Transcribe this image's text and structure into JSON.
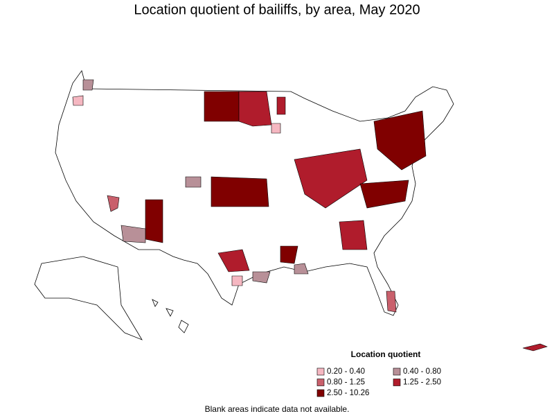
{
  "title": "Location quotient of bailiffs, by area, May 2020",
  "legend": {
    "title": "Location quotient",
    "items": [
      {
        "label": "0.20 - 0.40",
        "color": "#f5b7c1"
      },
      {
        "label": "0.40 - 0.80",
        "color": "#b89098"
      },
      {
        "label": "0.80 - 1.25",
        "color": "#c9606c"
      },
      {
        "label": "1.25 - 2.50",
        "color": "#b01c2c"
      },
      {
        "label": "2.50 - 10.26",
        "color": "#800000"
      }
    ]
  },
  "footnote": "Blank areas indicate data not available."
}
